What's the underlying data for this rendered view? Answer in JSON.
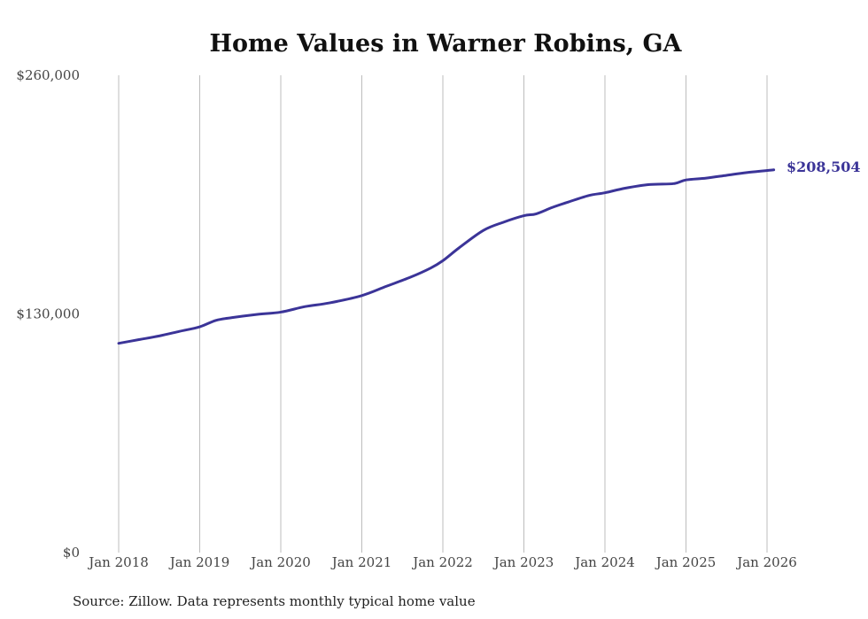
{
  "chart_data": {
    "type": "line",
    "title": "Home Values in Warner Robins, GA",
    "xlabel": "",
    "ylabel": "",
    "ylim": [
      0,
      260000
    ],
    "xlim": [
      2018.0,
      2026.0833
    ],
    "grid": "vertical",
    "y_ticks": [
      {
        "value": 260000,
        "label": "$260,000"
      },
      {
        "value": 130000,
        "label": "$130,000"
      },
      {
        "value": 0,
        "label": "$0"
      }
    ],
    "x_ticks": [
      {
        "value": 2018,
        "label": "Jan 2018"
      },
      {
        "value": 2019,
        "label": "Jan 2019"
      },
      {
        "value": 2020,
        "label": "Jan 2020"
      },
      {
        "value": 2021,
        "label": "Jan 2021"
      },
      {
        "value": 2022,
        "label": "Jan 2022"
      },
      {
        "value": 2023,
        "label": "Jan 2023"
      },
      {
        "value": 2024,
        "label": "Jan 2024"
      },
      {
        "value": 2025,
        "label": "Jan 2025"
      },
      {
        "value": 2026,
        "label": "Jan 2026"
      }
    ],
    "series": [
      {
        "name": "Typical home value",
        "color": "#3b3498",
        "x": [
          2018.0,
          2018.25,
          2018.5,
          2018.75,
          2019.0,
          2019.2,
          2019.4,
          2019.7,
          2020.0,
          2020.3,
          2020.6,
          2021.0,
          2021.3,
          2021.6,
          2021.85,
          2022.0,
          2022.2,
          2022.5,
          2022.75,
          2023.0,
          2023.15,
          2023.35,
          2023.55,
          2023.8,
          2024.0,
          2024.25,
          2024.55,
          2024.85,
          2025.0,
          2025.25,
          2025.5,
          2025.75,
          2026.0833
        ],
        "values": [
          114000,
          116000,
          118000,
          120500,
          123000,
          126500,
          128000,
          129700,
          131000,
          134000,
          136000,
          140000,
          145000,
          150000,
          155000,
          159000,
          166000,
          175500,
          180000,
          183500,
          184500,
          188000,
          191000,
          194500,
          196000,
          198500,
          200500,
          201000,
          203000,
          204000,
          205500,
          207000,
          208504
        ]
      }
    ],
    "end_label": "$208,504",
    "line_color": "#3b3498"
  },
  "source_note": "Source: Zillow. Data represents monthly typical home value"
}
